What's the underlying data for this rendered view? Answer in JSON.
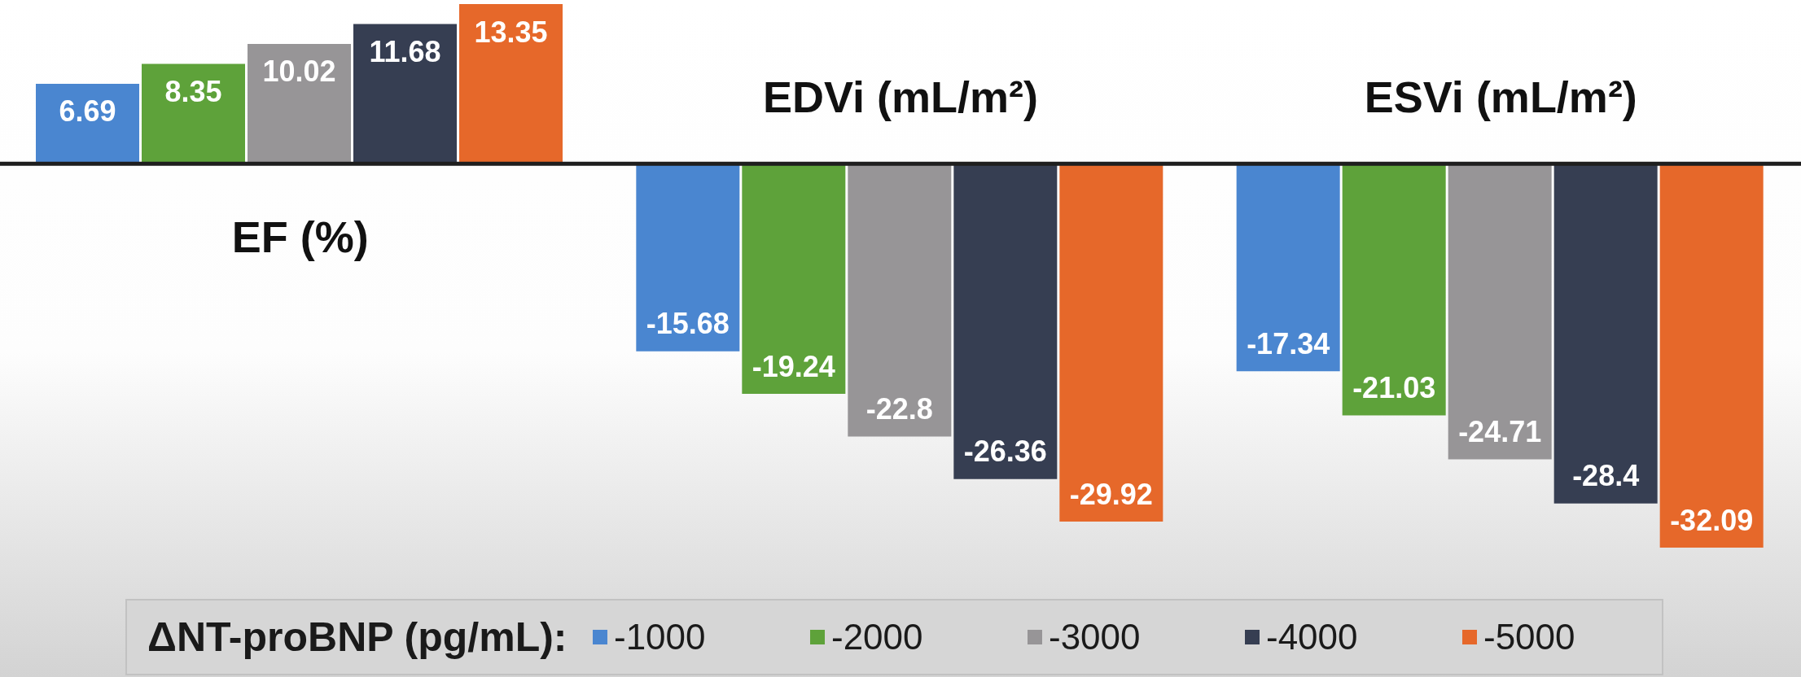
{
  "chart_data": {
    "type": "bar",
    "categories": [
      "EF (%)",
      "EDVi (mL/m²)",
      "ESVi (mL/m²)"
    ],
    "series": [
      {
        "name": "-1000",
        "color": "#4a86d0",
        "values": [
          6.69,
          -15.68,
          -17.34
        ]
      },
      {
        "name": "-2000",
        "color": "#5ea23a",
        "values": [
          8.35,
          -19.24,
          -21.03
        ]
      },
      {
        "name": "-3000",
        "color": "#979597",
        "values": [
          10.02,
          -22.8,
          -24.71
        ]
      },
      {
        "name": "-4000",
        "color": "#363e52",
        "values": [
          11.68,
          -26.36,
          -28.4
        ]
      },
      {
        "name": "-5000",
        "color": "#e6682a",
        "values": [
          13.35,
          -29.92,
          -32.09
        ]
      }
    ],
    "legend_title": "ΔNT-proBNP (pg/mL):",
    "legend": "bottom",
    "data_labels": true
  }
}
